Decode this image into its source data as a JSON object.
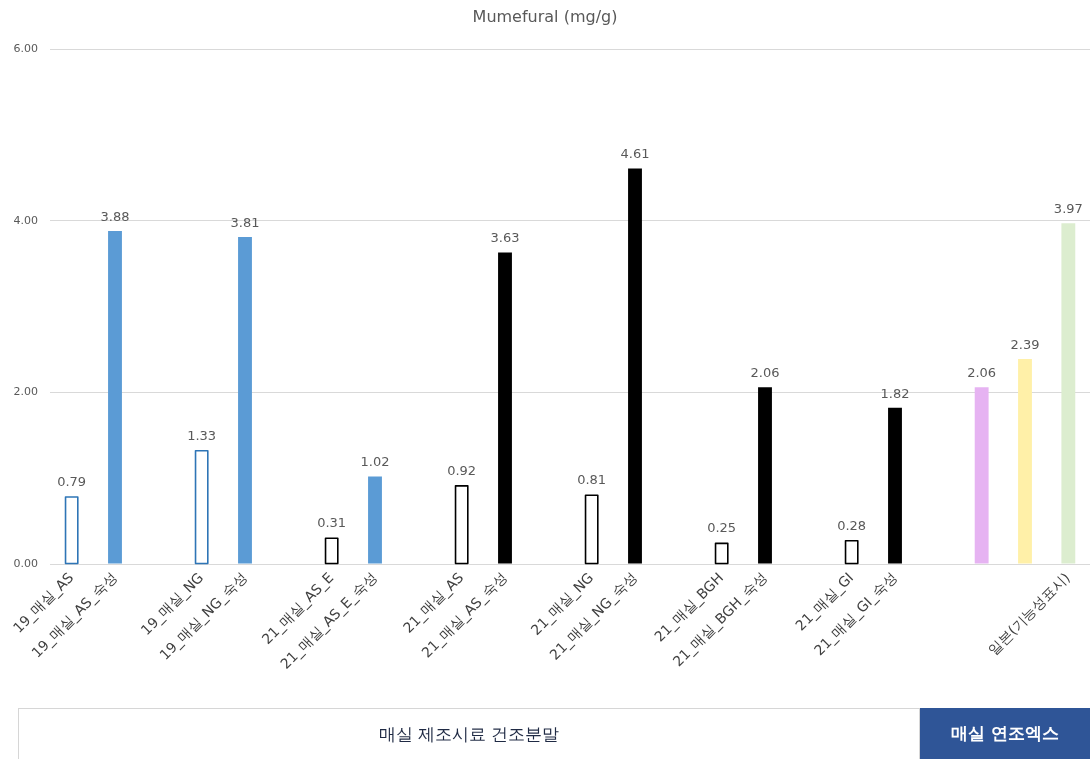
{
  "chart_data": {
    "type": "bar",
    "title": "Mumefural (mg/g)",
    "categories": [
      "19_매실_AS",
      "19_매실_AS_숙성",
      null,
      "19_매실_NG",
      "19_매실_NG_숙성",
      null,
      "21_매실_AS_E",
      "21_매실_AS_E_숙성",
      null,
      "21_매실_AS",
      "21_매실_AS_숙성",
      null,
      "21_매실_NG",
      "21_매실_NG_숙성",
      null,
      "21_매실_BGH",
      "21_매실_BGH_숙성",
      null,
      "21_매실_GI",
      "21_매실_GI_숙성",
      null,
      null,
      null,
      "일본(기능성표시)"
    ],
    "series": [
      {
        "line_style": "solid",
        "values": [
          0.79,
          null,
          null,
          1.33,
          null,
          null,
          0.31,
          null,
          null,
          0.92,
          null,
          null,
          0.81,
          null,
          null,
          0.25,
          null,
          null,
          0.28,
          null,
          null,
          null,
          null,
          null
        ],
        "colors": [
          "#2e75b6",
          null,
          null,
          "#2e75b6",
          null,
          null,
          "#000000",
          null,
          null,
          "#000000",
          null,
          null,
          "#000000",
          null,
          null,
          "#000000",
          null,
          null,
          "#000000",
          null,
          null,
          null,
          null,
          null
        ]
      },
      {
        "values": [
          null,
          3.88,
          null,
          null,
          3.81,
          null,
          null,
          1.02,
          null,
          null,
          3.63,
          null,
          null,
          4.61,
          null,
          null,
          2.06,
          null,
          null,
          1.82,
          null,
          2.06,
          2.39,
          3.97
        ],
        "colors": [
          null,
          "#5b9bd5",
          null,
          null,
          "#5b9bd5",
          null,
          null,
          "#5b9bd5",
          null,
          null,
          "#000000",
          null,
          null,
          "#000000",
          null,
          null,
          "#000000",
          null,
          null,
          "#000000",
          null,
          "#e6b3f2",
          "#fff0a8",
          "#dcedcf"
        ]
      }
    ],
    "ylim": [
      0,
      6
    ],
    "yticks": [
      {
        "value": 0,
        "label": "0.00"
      },
      {
        "value": 2,
        "label": "2.00"
      },
      {
        "value": 4,
        "label": "4.00"
      },
      {
        "value": 6,
        "label": "6.00"
      }
    ],
    "grid": "y",
    "data_labels": true,
    "annotations": [
      "매실 제조시료 건조분말",
      "매실 연조엑스"
    ]
  }
}
